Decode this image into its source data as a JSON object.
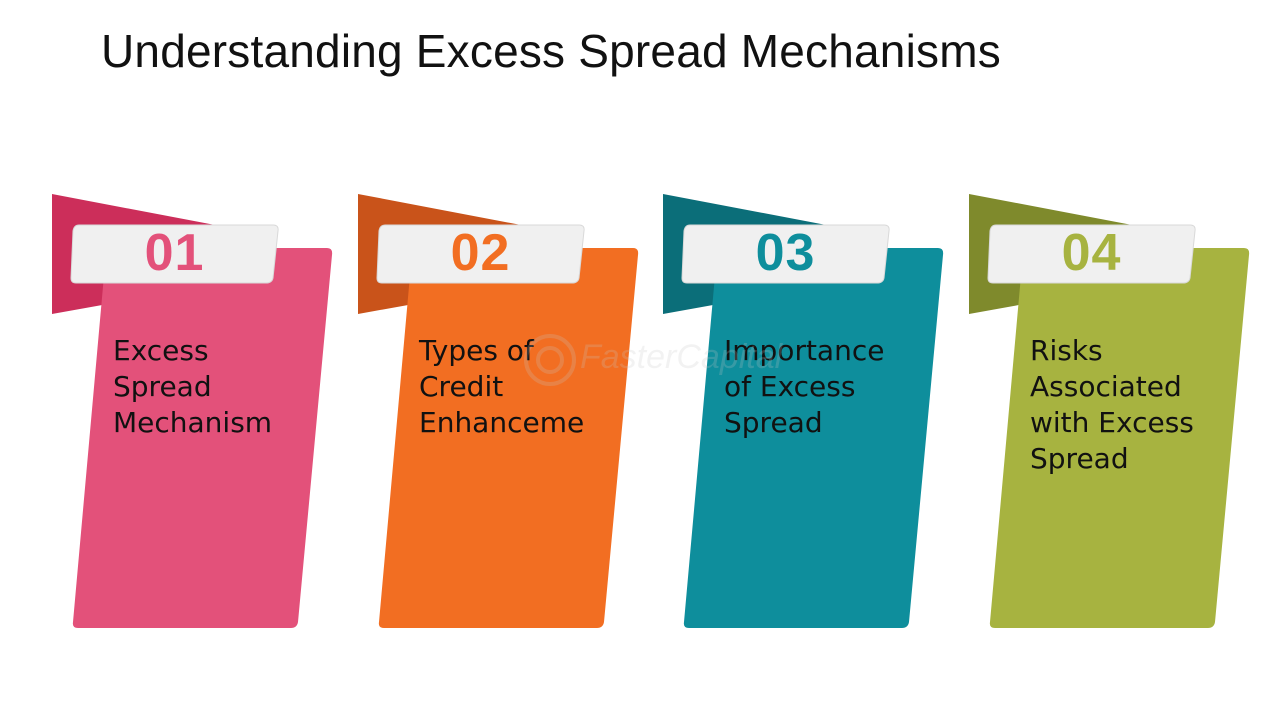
{
  "title": "Understanding Excess Spread Mechanisms",
  "cards": [
    {
      "number": "01",
      "label": "Excess\nSpread\nMechanism",
      "color": "#E3517A",
      "flag_color": "#CC2E5A",
      "number_color": "#E3517A"
    },
    {
      "number": "02",
      "label": "Types of\nCredit\nEnhanceme",
      "color": "#F26E22",
      "flag_color": "#C9531A",
      "number_color": "#F26E22"
    },
    {
      "number": "03",
      "label": "Importance\nof Excess\nSpread",
      "color": "#0E8E9C",
      "flag_color": "#0B6E79",
      "number_color": "#0E8E9C"
    },
    {
      "number": "04",
      "label": "Risks\nAssociated\nwith Excess\nSpread",
      "color": "#A7B340",
      "flag_color": "#7F8A2C",
      "number_color": "#A7B340"
    }
  ],
  "watermark": "FasterCapital"
}
